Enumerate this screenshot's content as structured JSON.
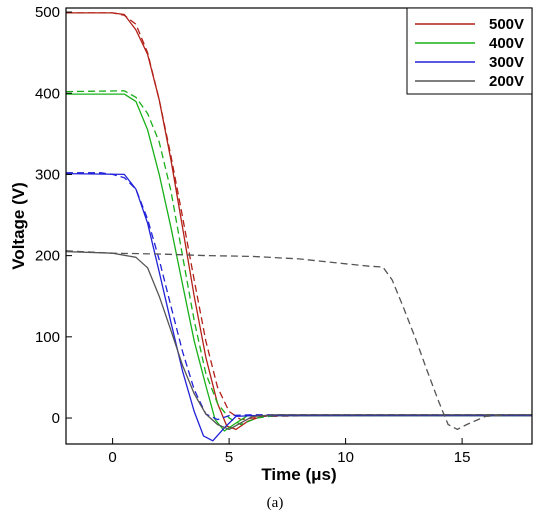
{
  "chart_data": {
    "type": "line",
    "xlabel": "Time (μs)",
    "ylabel": "Voltage (V)",
    "xlim": [
      -2,
      18
    ],
    "ylim": [
      -32,
      505
    ],
    "xticks": [
      0,
      5,
      10,
      15
    ],
    "yticks": [
      0,
      100,
      200,
      300,
      400,
      500
    ],
    "grid": false,
    "legend_position": "top-right",
    "caption": "(a)",
    "series": [
      {
        "name": "500V",
        "color": "#b22018",
        "style": "solid",
        "points": [
          [
            -2,
            499
          ],
          [
            0,
            499
          ],
          [
            0.5,
            497
          ],
          [
            1,
            478
          ],
          [
            1.5,
            448
          ],
          [
            2,
            392
          ],
          [
            2.5,
            318
          ],
          [
            3,
            235
          ],
          [
            3.5,
            150
          ],
          [
            4,
            75
          ],
          [
            4.5,
            18
          ],
          [
            4.9,
            -10
          ],
          [
            5.3,
            -14
          ],
          [
            5.8,
            -4
          ],
          [
            6.5,
            3
          ],
          [
            9,
            3
          ],
          [
            12,
            3
          ],
          [
            18,
            3
          ]
        ]
      },
      {
        "name": "500V",
        "color": "#b22018",
        "style": "dashed",
        "points": [
          [
            -2,
            499
          ],
          [
            0,
            499
          ],
          [
            0.5,
            496
          ],
          [
            1,
            485
          ],
          [
            1.5,
            450
          ],
          [
            2,
            392
          ],
          [
            2.5,
            323
          ],
          [
            3,
            248
          ],
          [
            3.5,
            170
          ],
          [
            4,
            95
          ],
          [
            4.5,
            38
          ],
          [
            5,
            8
          ],
          [
            5.5,
            -2
          ],
          [
            6.5,
            2
          ],
          [
            9,
            3
          ],
          [
            12,
            3
          ],
          [
            18,
            3
          ]
        ]
      },
      {
        "name": "400V",
        "color": "#19b019",
        "style": "solid",
        "points": [
          [
            -2,
            399
          ],
          [
            0.5,
            399
          ],
          [
            1,
            390
          ],
          [
            1.5,
            355
          ],
          [
            2,
            300
          ],
          [
            2.5,
            235
          ],
          [
            3,
            165
          ],
          [
            3.5,
            95
          ],
          [
            4,
            40
          ],
          [
            4.4,
            -2
          ],
          [
            4.8,
            -16
          ],
          [
            5.2,
            -8
          ],
          [
            5.8,
            3
          ],
          [
            7,
            3
          ],
          [
            12,
            3
          ],
          [
            18,
            3
          ]
        ]
      },
      {
        "name": "400V",
        "color": "#19b019",
        "style": "dashed",
        "points": [
          [
            -2,
            402
          ],
          [
            0.5,
            403
          ],
          [
            1,
            395
          ],
          [
            1.5,
            375
          ],
          [
            2,
            340
          ],
          [
            2.5,
            280
          ],
          [
            3,
            200
          ],
          [
            3.5,
            120
          ],
          [
            4,
            55
          ],
          [
            4.5,
            18
          ],
          [
            5,
            0
          ],
          [
            5.5,
            -8
          ],
          [
            6.2,
            0
          ],
          [
            7,
            3
          ],
          [
            12,
            3
          ],
          [
            18,
            3
          ]
        ]
      },
      {
        "name": "300V",
        "color": "#2121d8",
        "style": "solid",
        "points": [
          [
            -2,
            301
          ],
          [
            0.5,
            300
          ],
          [
            1,
            282
          ],
          [
            1.5,
            240
          ],
          [
            2,
            180
          ],
          [
            2.5,
            118
          ],
          [
            3,
            58
          ],
          [
            3.5,
            8
          ],
          [
            3.9,
            -22
          ],
          [
            4.3,
            -28
          ],
          [
            4.8,
            -12
          ],
          [
            5.3,
            2
          ],
          [
            6,
            3
          ],
          [
            12,
            3
          ],
          [
            18,
            3
          ]
        ]
      },
      {
        "name": "300V",
        "color": "#2121d8",
        "style": "dashed",
        "points": [
          [
            -2,
            302
          ],
          [
            -0.5,
            302
          ],
          [
            0,
            300
          ],
          [
            0.5,
            296
          ],
          [
            1,
            282
          ],
          [
            1.5,
            245
          ],
          [
            2,
            195
          ],
          [
            2.5,
            138
          ],
          [
            3,
            82
          ],
          [
            3.5,
            35
          ],
          [
            4,
            5
          ],
          [
            4.5,
            -2
          ],
          [
            5,
            3
          ],
          [
            6,
            4
          ],
          [
            12,
            4
          ],
          [
            18,
            4
          ]
        ]
      },
      {
        "name": "200V",
        "color": "#555555",
        "style": "solid",
        "points": [
          [
            -2,
            205
          ],
          [
            0,
            203
          ],
          [
            1,
            198
          ],
          [
            1.5,
            185
          ],
          [
            2,
            150
          ],
          [
            2.5,
            108
          ],
          [
            3,
            65
          ],
          [
            3.5,
            30
          ],
          [
            4,
            5
          ],
          [
            4.5,
            -8
          ],
          [
            5,
            -14
          ],
          [
            5.5,
            -6
          ],
          [
            6,
            2
          ],
          [
            7,
            4
          ],
          [
            12,
            4
          ],
          [
            18,
            4
          ]
        ]
      },
      {
        "name": "200V",
        "color": "#555555",
        "style": "dashed",
        "points": [
          [
            -2,
            206
          ],
          [
            0,
            203
          ],
          [
            2,
            202
          ],
          [
            4,
            200
          ],
          [
            6,
            199
          ],
          [
            8,
            196
          ],
          [
            10,
            190
          ],
          [
            11,
            187
          ],
          [
            11.6,
            186
          ],
          [
            12,
            170
          ],
          [
            12.5,
            135
          ],
          [
            13,
            98
          ],
          [
            13.5,
            58
          ],
          [
            14,
            20
          ],
          [
            14.4,
            -8
          ],
          [
            14.8,
            -14
          ],
          [
            15.2,
            -8
          ],
          [
            16,
            2
          ],
          [
            17,
            4
          ],
          [
            18,
            4
          ]
        ]
      }
    ],
    "legend": [
      {
        "label": "500V",
        "color": "#b22018"
      },
      {
        "label": "400V",
        "color": "#19b019"
      },
      {
        "label": "300V",
        "color": "#2121d8"
      },
      {
        "label": "200V",
        "color": "#555555"
      }
    ]
  }
}
